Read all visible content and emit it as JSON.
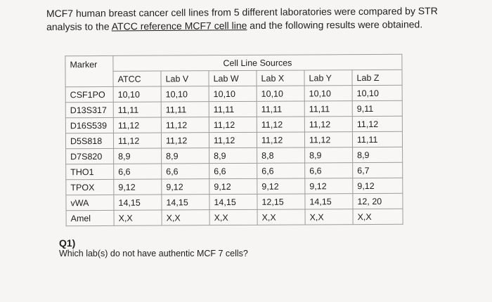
{
  "intro": {
    "part1": "MCF7 human breast cancer cell lines from 5 different laboratories were compared by STR analysis to the ",
    "link": "ATCC reference MCF7 cell line",
    "part2": " and the following results were obtained."
  },
  "table": {
    "marker_header": "Marker",
    "sources_header": "Cell Line Sources",
    "columns": [
      "ATCC",
      "Lab V",
      "Lab W",
      "Lab X",
      "Lab Y",
      "Lab Z"
    ],
    "rows": [
      {
        "marker": "CSF1PO",
        "values": [
          "10,10",
          "10,10",
          "10,10",
          "10,10",
          "10,10",
          "10,10"
        ]
      },
      {
        "marker": "D13S317",
        "values": [
          "11,11",
          "11,11",
          "11,11",
          "11,11",
          "11,11",
          "9,11"
        ]
      },
      {
        "marker": "D16S539",
        "values": [
          "11,12",
          "11,12",
          "11,12",
          "11,12",
          "11,12",
          "11,12"
        ]
      },
      {
        "marker": "D5S818",
        "values": [
          "11,12",
          "11,12",
          "11,12",
          "11,12",
          "11,12",
          "11,11"
        ]
      },
      {
        "marker": "D7S820",
        "values": [
          "8,9",
          "8,9",
          "8,9",
          "8,8",
          "8,9",
          "8,9"
        ]
      },
      {
        "marker": "THO1",
        "values": [
          "6,6",
          "6,6",
          "6,6",
          "6,6",
          "6,6",
          "6,7"
        ]
      },
      {
        "marker": "TPOX",
        "values": [
          "9,12",
          "9,12",
          "9,12",
          "9,12",
          "9,12",
          "9,12"
        ]
      },
      {
        "marker": "vWA",
        "values": [
          "14,15",
          "14,15",
          "14,15",
          "12,15",
          "14,15",
          "12, 20"
        ]
      },
      {
        "marker": "Amel",
        "values": [
          "X,X",
          "X,X",
          "X,X",
          "X,X",
          "X,X",
          "X,X"
        ]
      }
    ]
  },
  "question": {
    "label": "Q1)",
    "text": "Which lab(s) do not have authentic MCF 7 cells?"
  }
}
